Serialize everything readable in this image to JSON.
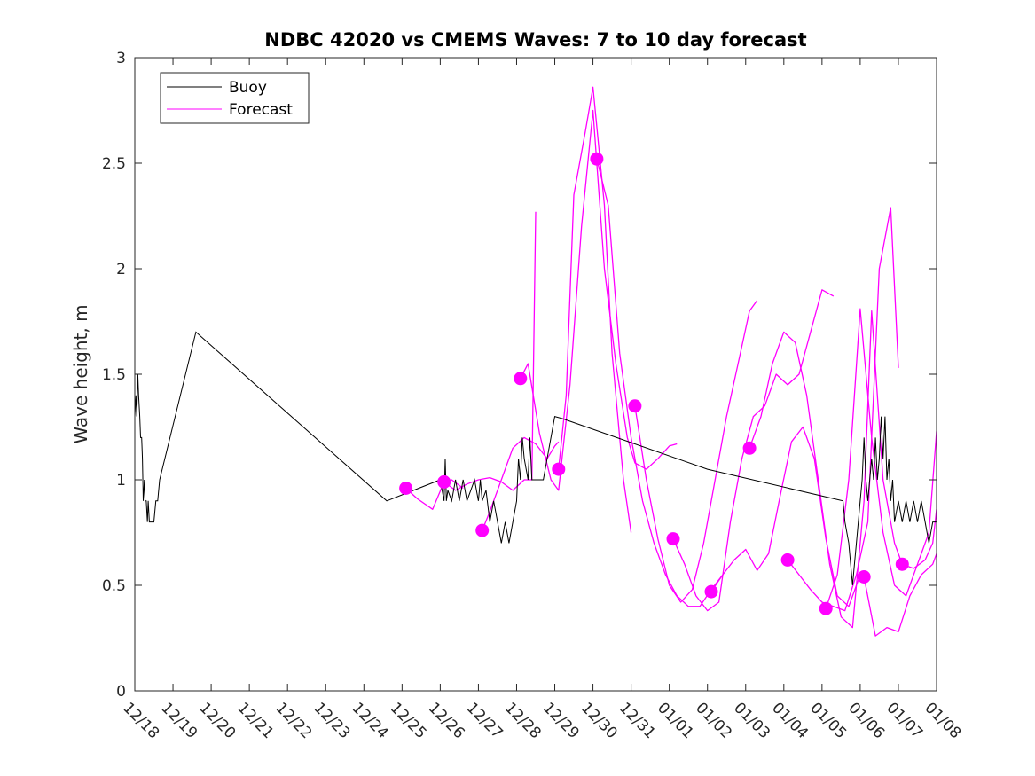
{
  "chart_data": {
    "type": "line",
    "title": "NDBC 42020 vs CMEMS Waves: 7 to 10 day forecast",
    "xlabel": "",
    "ylabel": "Wave height, m",
    "xlim": [
      0,
      21
    ],
    "ylim": [
      0,
      3
    ],
    "x_tick_labels": [
      "12/18",
      "12/19",
      "12/20",
      "12/21",
      "12/22",
      "12/23",
      "12/24",
      "12/25",
      "12/26",
      "12/27",
      "12/28",
      "12/29",
      "12/30",
      "12/31",
      "01/01",
      "01/02",
      "01/03",
      "01/04",
      "01/05",
      "01/06",
      "01/07",
      "01/08"
    ],
    "y_ticks": [
      0,
      0.5,
      1,
      1.5,
      2,
      2.5,
      3
    ],
    "y_tick_labels": [
      "0",
      "0.5",
      "1",
      "1.5",
      "2",
      "2.5",
      "3"
    ],
    "grid": false,
    "legend": {
      "location": "top-left",
      "entries": [
        {
          "label": "Buoy",
          "color": "#000000"
        },
        {
          "label": "Forecast",
          "color": "#ff00ff"
        }
      ]
    },
    "colors": {
      "buoy": "#000000",
      "forecast": "#ff00ff"
    },
    "buoy": {
      "name": "Buoy",
      "x": [
        0,
        0.03,
        0.05,
        0.08,
        0.1,
        0.13,
        0.15,
        0.18,
        0.2,
        0.22,
        0.25,
        0.27,
        0.3,
        0.33,
        0.35,
        0.38,
        0.42,
        0.45,
        0.5,
        0.55,
        0.6,
        0.65,
        1.6,
        6.6,
        7.3,
        8.0,
        8.05,
        8.1,
        8.13,
        8.16,
        8.2,
        8.3,
        8.4,
        8.5,
        8.6,
        8.7,
        8.8,
        8.9,
        9.0,
        9.05,
        9.1,
        9.2,
        9.3,
        9.4,
        9.5,
        9.6,
        9.7,
        9.8,
        9.9,
        10.0,
        10.05,
        10.1,
        10.15,
        10.2,
        10.3,
        10.35,
        10.4,
        10.5,
        10.6,
        10.7,
        10.8,
        10.9,
        11.0,
        11.2,
        15.0,
        18.55,
        18.6,
        18.7,
        18.75,
        18.8,
        18.85,
        18.9,
        19.0,
        19.05,
        19.1,
        19.15,
        19.2,
        19.3,
        19.35,
        19.4,
        19.45,
        19.5,
        19.55,
        19.6,
        19.65,
        19.7,
        19.75,
        19.8,
        19.85,
        19.9,
        20.0,
        20.1,
        20.2,
        20.3,
        20.4,
        20.5,
        20.6,
        20.7,
        20.8,
        20.9,
        21.0
      ],
      "y": [
        1.3,
        1.4,
        1.3,
        1.5,
        1.4,
        1.3,
        1.2,
        1.2,
        1.1,
        0.9,
        1.0,
        0.9,
        0.9,
        0.8,
        0.9,
        0.8,
        0.8,
        0.8,
        0.8,
        0.9,
        0.9,
        1.0,
        1.7,
        0.9,
        0.95,
        1.0,
        0.95,
        0.9,
        1.1,
        0.9,
        0.95,
        0.9,
        1.0,
        0.9,
        1.0,
        0.9,
        0.95,
        1.0,
        0.9,
        1.0,
        0.9,
        0.95,
        0.8,
        0.9,
        0.8,
        0.7,
        0.8,
        0.7,
        0.8,
        0.9,
        1.1,
        1.0,
        1.2,
        1.1,
        1.0,
        1.2,
        1.0,
        1.0,
        1.0,
        1.0,
        1.1,
        1.2,
        1.3,
        1.29,
        1.05,
        0.9,
        0.8,
        0.7,
        0.6,
        0.5,
        0.6,
        0.7,
        0.9,
        1.0,
        1.2,
        1.0,
        0.9,
        1.1,
        1.0,
        1.2,
        1.0,
        1.1,
        1.3,
        1.1,
        1.3,
        1.0,
        1.1,
        0.9,
        1.0,
        0.8,
        0.9,
        0.8,
        0.9,
        0.8,
        0.9,
        0.8,
        0.9,
        0.8,
        0.7,
        0.8,
        0.8
      ]
    },
    "forecast_series": [
      {
        "name": "Forecast",
        "x": [
          7.1,
          7.4,
          7.8,
          8.1,
          8.3,
          8.6
        ],
        "y": [
          0.96,
          0.91,
          0.86,
          0.99,
          1.0,
          0.96
        ]
      },
      {
        "name": "Forecast",
        "x": [
          8.1,
          8.4,
          8.7,
          9.0,
          9.3,
          9.6,
          9.9,
          10.2,
          10.4,
          10.5
        ],
        "y": [
          0.99,
          0.95,
          0.98,
          1.0,
          1.01,
          0.99,
          0.95,
          1.0,
          1.0,
          2.27
        ]
      },
      {
        "name": "Forecast",
        "x": [
          9.1,
          9.3,
          9.6,
          9.9,
          10.2,
          10.5,
          10.8,
          11.0,
          11.1
        ],
        "y": [
          0.76,
          0.85,
          1.0,
          1.15,
          1.2,
          1.17,
          1.1,
          1.16,
          1.18
        ]
      },
      {
        "name": "Forecast",
        "x": [
          10.1,
          10.3,
          10.6,
          10.9,
          11.1,
          11.4,
          11.7,
          12.0,
          12.3,
          12.6,
          12.9,
          13.1,
          13.4,
          13.7,
          14.0,
          14.2
        ],
        "y": [
          1.48,
          1.55,
          1.22,
          1.0,
          0.95,
          1.45,
          2.2,
          2.75,
          2.0,
          1.55,
          1.2,
          1.08,
          1.05,
          1.1,
          1.16,
          1.17
        ]
      },
      {
        "name": "Forecast",
        "x": [
          11.1,
          11.3,
          11.5,
          11.8,
          12.0,
          12.3,
          12.5,
          12.8,
          13.0
        ],
        "y": [
          1.05,
          1.4,
          2.35,
          2.65,
          2.86,
          2.3,
          1.6,
          1.0,
          0.75
        ]
      },
      {
        "name": "Forecast",
        "x": [
          12.1,
          12.4,
          12.7,
          13.0,
          13.3,
          13.6,
          13.9,
          14.2,
          14.5,
          14.8,
          15.1,
          15.4
        ],
        "y": [
          2.52,
          2.3,
          1.6,
          1.2,
          0.9,
          0.7,
          0.55,
          0.45,
          0.4,
          0.4,
          0.48,
          0.55
        ]
      },
      {
        "name": "Forecast",
        "x": [
          13.1,
          13.4,
          13.7,
          14.0,
          14.3,
          14.6,
          14.9,
          15.2,
          15.5,
          15.8,
          16.1,
          16.3
        ],
        "y": [
          1.35,
          1.0,
          0.72,
          0.5,
          0.42,
          0.48,
          0.7,
          1.0,
          1.3,
          1.55,
          1.8,
          1.85
        ]
      },
      {
        "name": "Forecast",
        "x": [
          14.1,
          14.4,
          14.7,
          15.0,
          15.3,
          15.6,
          15.9,
          16.2,
          16.5,
          16.8,
          17.1,
          17.4,
          17.7,
          18.0,
          18.3
        ],
        "y": [
          0.72,
          0.6,
          0.45,
          0.38,
          0.42,
          0.8,
          1.1,
          1.3,
          1.35,
          1.5,
          1.45,
          1.5,
          1.7,
          1.9,
          1.87
        ]
      },
      {
        "name": "Forecast",
        "x": [
          15.1,
          15.4,
          15.7,
          16.0,
          16.3,
          16.6,
          16.9,
          17.2,
          17.5,
          17.8,
          18.1,
          18.4,
          18.7,
          19.0
        ],
        "y": [
          0.47,
          0.55,
          0.62,
          0.67,
          0.57,
          0.65,
          0.92,
          1.18,
          1.25,
          1.1,
          0.72,
          0.45,
          0.4,
          0.55
        ]
      },
      {
        "name": "Forecast",
        "x": [
          16.1,
          16.4,
          16.7,
          17.0,
          17.3,
          17.6,
          17.9,
          18.2,
          18.5,
          18.8,
          19.1,
          19.3,
          19.6,
          19.9,
          20.1
        ],
        "y": [
          1.15,
          1.3,
          1.55,
          1.7,
          1.65,
          1.4,
          1.0,
          0.6,
          0.35,
          0.3,
          0.9,
          1.8,
          1.0,
          0.7,
          0.6
        ]
      },
      {
        "name": "Forecast",
        "x": [
          17.1,
          17.4,
          17.7,
          18.0,
          18.3,
          18.6,
          18.9,
          19.2,
          19.5,
          19.8,
          20.0
        ],
        "y": [
          0.62,
          0.55,
          0.48,
          0.42,
          0.4,
          0.38,
          0.55,
          0.8,
          2.0,
          2.29,
          1.53
        ]
      },
      {
        "name": "Forecast",
        "x": [
          18.1,
          18.4,
          18.7,
          19.0,
          19.3,
          19.6,
          19.9,
          20.2,
          20.5,
          20.8,
          21.0
        ],
        "y": [
          0.39,
          0.55,
          1.0,
          1.81,
          1.2,
          0.75,
          0.5,
          0.45,
          0.6,
          0.75,
          1.23
        ]
      },
      {
        "name": "Forecast",
        "x": [
          19.1,
          19.4,
          19.7,
          20.0,
          20.3,
          20.6,
          20.9,
          21.0
        ],
        "y": [
          0.54,
          0.26,
          0.3,
          0.28,
          0.45,
          0.55,
          0.6,
          0.65
        ]
      },
      {
        "name": "Forecast",
        "x": [
          20.1,
          20.4,
          20.7,
          20.9,
          21.0
        ],
        "y": [
          0.6,
          0.58,
          0.62,
          0.7,
          0.86
        ]
      }
    ],
    "forecast_markers": {
      "name": "Forecast",
      "x": [
        7.1,
        8.1,
        9.1,
        10.1,
        11.1,
        12.1,
        13.1,
        14.1,
        15.1,
        16.1,
        17.1,
        18.1,
        19.1,
        20.1
      ],
      "y": [
        0.96,
        0.99,
        0.76,
        1.48,
        1.05,
        2.52,
        1.35,
        0.72,
        0.47,
        1.15,
        0.62,
        0.39,
        0.54,
        0.6
      ]
    }
  }
}
